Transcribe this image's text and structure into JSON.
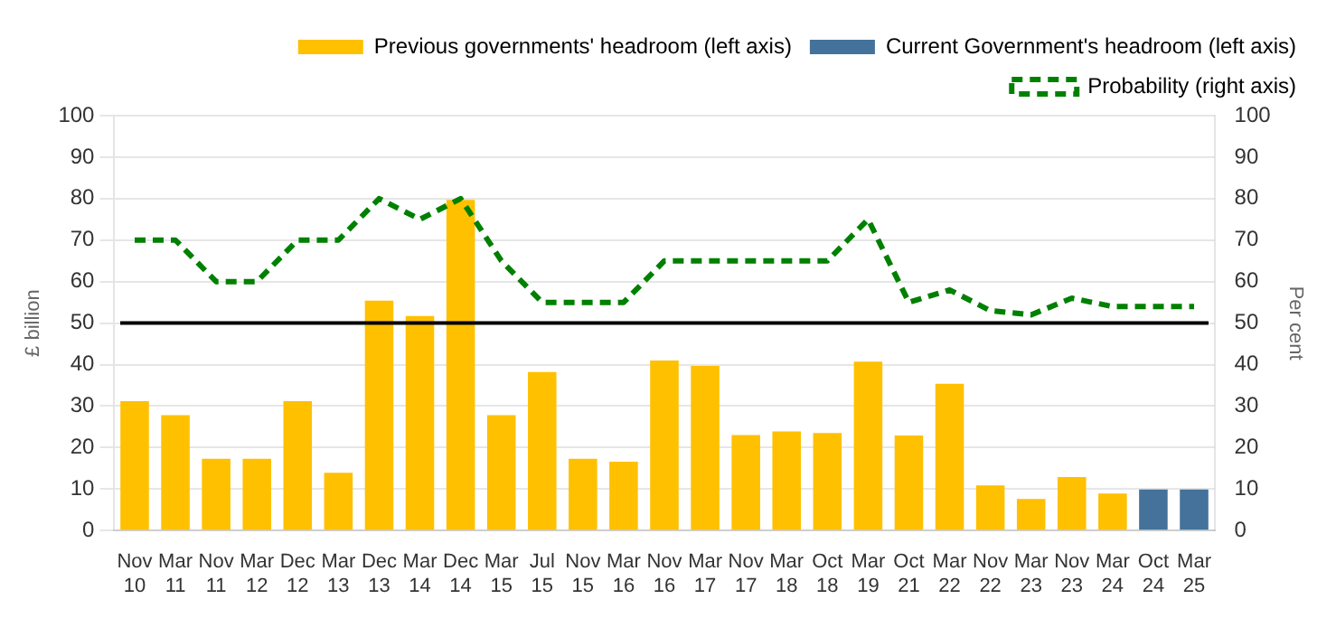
{
  "chart_data": {
    "type": "bar",
    "ylabel": "£ billion",
    "y2label": "Per cent",
    "categories": [
      "Nov 10",
      "Mar 11",
      "Nov 11",
      "Mar 12",
      "Dec 12",
      "Mar 13",
      "Dec 13",
      "Mar 14",
      "Dec 14",
      "Mar 15",
      "Jul 15",
      "Nov 15",
      "Mar 16",
      "Nov 16",
      "Mar 17",
      "Nov 17",
      "Mar 18",
      "Oct 18",
      "Mar 19",
      "Oct 21",
      "Mar 22",
      "Nov 22",
      "Mar 23",
      "Nov 23",
      "Mar 24",
      "Oct 24",
      "Mar 25"
    ],
    "series": [
      {
        "name": "Previous governments' headroom (left axis)",
        "color": "#ffc000",
        "values": [
          31.2,
          27.8,
          17.3,
          17.3,
          31.2,
          13.9,
          55.4,
          51.7,
          79.7,
          27.8,
          38.2,
          17.3,
          16.6,
          41.0,
          39.7,
          23.0,
          23.9,
          23.5,
          40.7,
          22.9,
          35.4,
          10.9,
          7.6,
          12.9,
          8.9,
          null,
          null
        ]
      },
      {
        "name": "Current Government's headroom (left axis)",
        "color": "#44729a",
        "values": [
          null,
          null,
          null,
          null,
          null,
          null,
          null,
          null,
          null,
          null,
          null,
          null,
          null,
          null,
          null,
          null,
          null,
          null,
          null,
          null,
          null,
          null,
          null,
          null,
          null,
          9.9,
          9.9
        ]
      },
      {
        "name": "Probability (right axis)",
        "type": "line",
        "axis": "y2",
        "color": "#008000",
        "line_style": "dashed",
        "marker": "none",
        "values": [
          70,
          70,
          60,
          60,
          70,
          70,
          80,
          75,
          80,
          65,
          55,
          55,
          55,
          65,
          65,
          65,
          65,
          65,
          75,
          55,
          58,
          53,
          52,
          56,
          54,
          54,
          54
        ]
      }
    ],
    "ylim": [
      0,
      100
    ],
    "yticks": [
      0,
      10,
      20,
      30,
      40,
      50,
      60,
      70,
      80,
      90,
      100
    ],
    "y2lim": [
      0,
      100
    ],
    "y2ticks": [
      0,
      10,
      20,
      30,
      40,
      50,
      60,
      70,
      80,
      90,
      100
    ],
    "ref_lines": [
      {
        "axis": "y",
        "value": 50,
        "color": "#000000"
      }
    ],
    "grid": "y",
    "legend": "top"
  }
}
